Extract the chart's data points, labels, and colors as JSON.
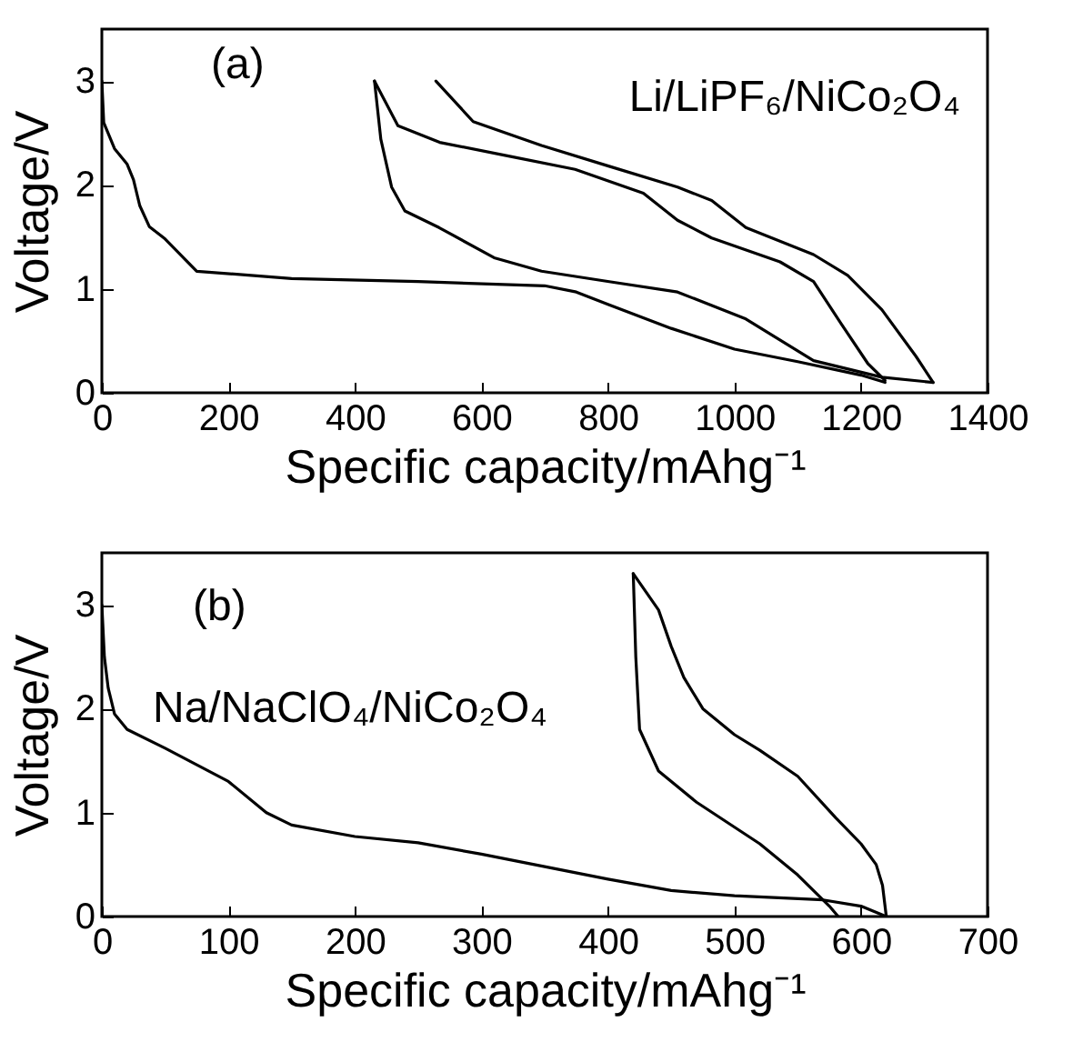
{
  "chart_data": [
    {
      "type": "line",
      "xlabel": "Specific capacity/mAhg⁻¹",
      "ylabel": "Voltage/V",
      "annotations": [
        "(a)",
        "Li/LiPF₆/NiCo₂O₄"
      ],
      "xlim": [
        0,
        1400
      ],
      "ylim": [
        0,
        3.5
      ],
      "xticks": [
        0,
        200,
        400,
        600,
        800,
        1000,
        1200,
        1400
      ],
      "yticks": [
        0,
        1,
        2,
        3
      ],
      "grid": false,
      "legend": false,
      "series": [
        {
          "color": "#000000",
          "x": [
            0,
            3,
            20,
            40,
            50,
            60,
            75,
            100,
            150,
            300,
            500,
            700,
            750,
            800,
            900,
            1000,
            1100,
            1200,
            1238
          ],
          "values": [
            3.0,
            2.6,
            2.35,
            2.2,
            2.05,
            1.8,
            1.6,
            1.48,
            1.17,
            1.1,
            1.07,
            1.03,
            0.97,
            0.85,
            0.62,
            0.42,
            0.3,
            0.17,
            0.1
          ]
        },
        {
          "color": "#000000",
          "x": [
            1238,
            1211,
            1168,
            1125,
            1072,
            964,
            910,
            856,
            748,
            641,
            534,
            468,
            431
          ],
          "values": [
            0.12,
            0.28,
            0.67,
            1.07,
            1.26,
            1.49,
            1.66,
            1.92,
            2.15,
            2.28,
            2.41,
            2.57,
            3.0
          ]
        },
        {
          "color": "#000000",
          "x": [
            431,
            441,
            458,
            479,
            533,
            620,
            695,
            802,
            910,
            1018,
            1125,
            1233,
            1314
          ],
          "values": [
            3.0,
            2.44,
            1.98,
            1.75,
            1.59,
            1.3,
            1.17,
            1.07,
            0.97,
            0.71,
            0.31,
            0.15,
            0.1
          ]
        },
        {
          "color": "#000000",
          "x": [
            1314,
            1287,
            1233,
            1179,
            1125,
            1018,
            964,
            910,
            802,
            695,
            587,
            528
          ],
          "values": [
            0.1,
            0.35,
            0.8,
            1.13,
            1.33,
            1.59,
            1.85,
            1.98,
            2.18,
            2.38,
            2.61,
            3.0
          ]
        }
      ]
    },
    {
      "type": "line",
      "xlabel": "Specific capacity/mAhg⁻¹",
      "ylabel": "Voltage/V",
      "annotations": [
        "(b)",
        "Na/NaClO₄/NiCo₂O₄"
      ],
      "xlim": [
        0,
        700
      ],
      "ylim": [
        0,
        3.5
      ],
      "xticks": [
        0,
        100,
        200,
        300,
        400,
        500,
        600,
        700
      ],
      "yticks": [
        0,
        1,
        2,
        3
      ],
      "grid": false,
      "legend": false,
      "series": [
        {
          "color": "#000000",
          "x": [
            0,
            2,
            5,
            10,
            20,
            50,
            100,
            130,
            150,
            200,
            250,
            300,
            350,
            400,
            450,
            500,
            570,
            600,
            620
          ],
          "values": [
            3.0,
            2.5,
            2.2,
            1.95,
            1.8,
            1.62,
            1.3,
            1.0,
            0.88,
            0.77,
            0.71,
            0.6,
            0.48,
            0.36,
            0.25,
            0.2,
            0.16,
            0.1,
            0.0
          ]
        },
        {
          "color": "#000000",
          "x": [
            620,
            617,
            612,
            600,
            580,
            550,
            520,
            500,
            475,
            460,
            450,
            440,
            420
          ],
          "values": [
            0.0,
            0.3,
            0.5,
            0.7,
            0.95,
            1.35,
            1.6,
            1.75,
            2.0,
            2.3,
            2.6,
            2.95,
            3.3
          ]
        },
        {
          "color": "#000000",
          "x": [
            420,
            422,
            425,
            440,
            470,
            520,
            550,
            575,
            582
          ],
          "values": [
            3.3,
            2.5,
            1.8,
            1.4,
            1.1,
            0.7,
            0.4,
            0.1,
            0.0
          ]
        }
      ]
    }
  ]
}
